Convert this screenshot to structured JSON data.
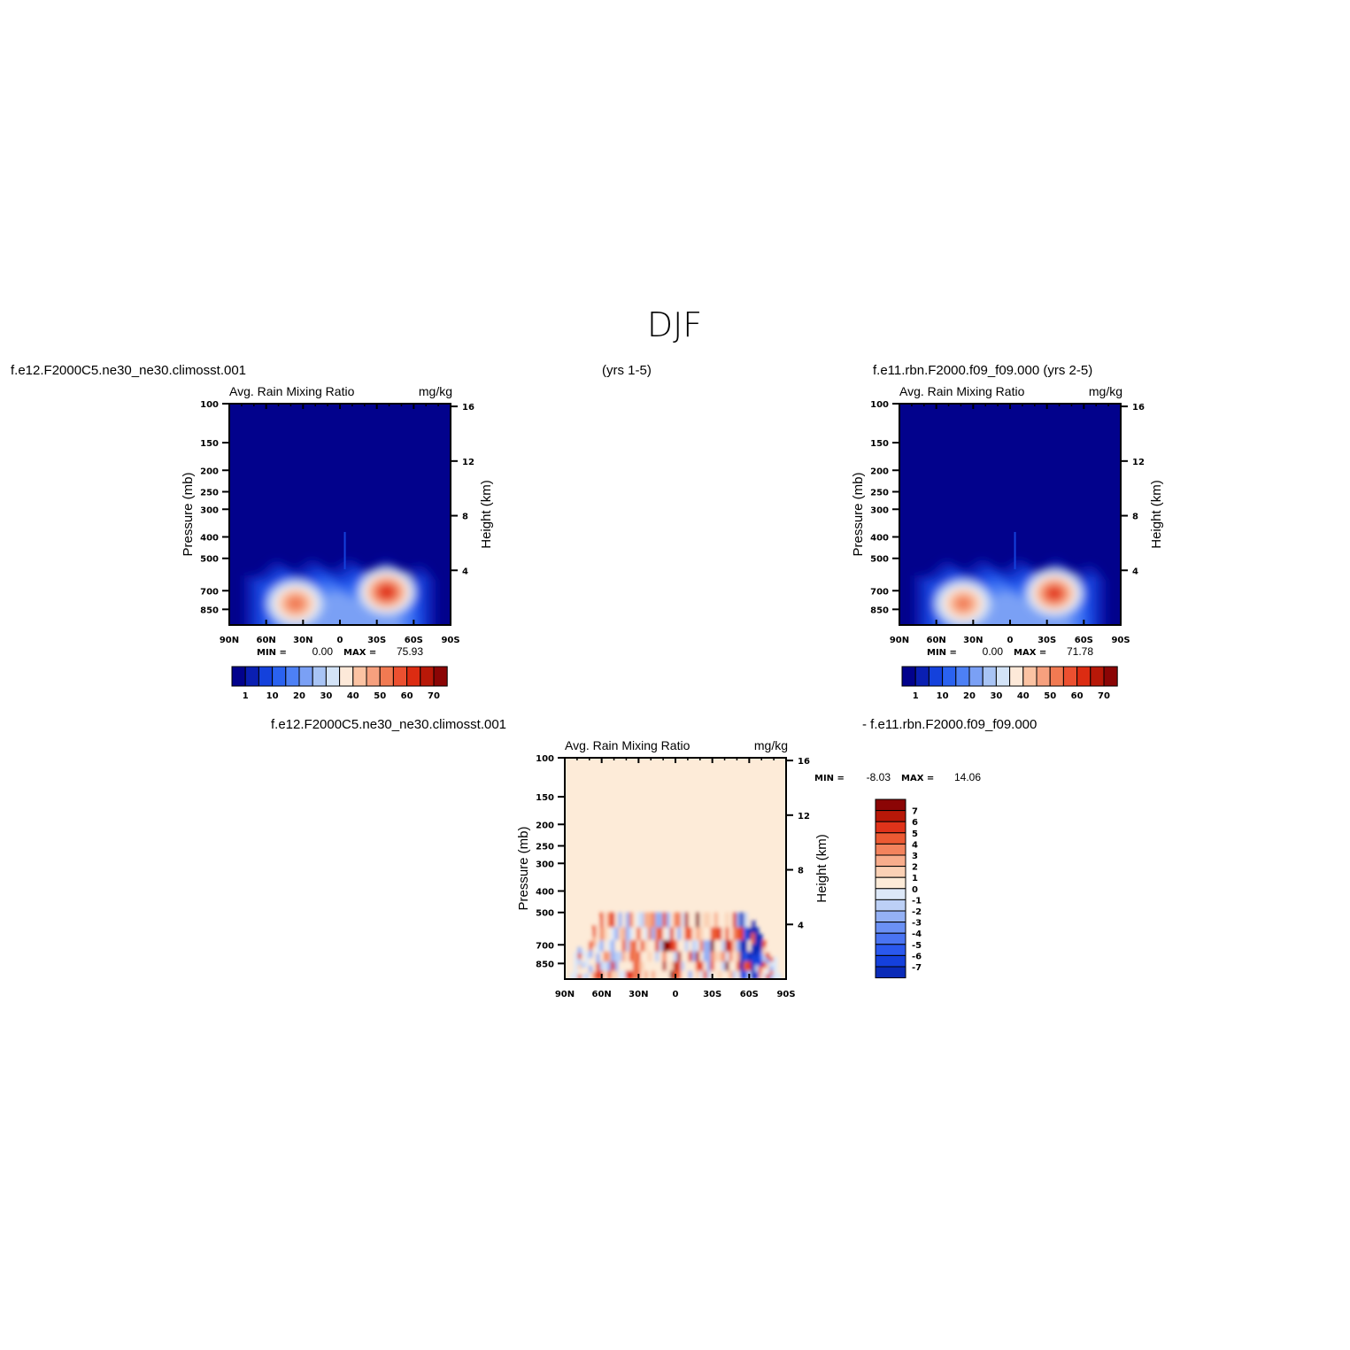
{
  "figure": {
    "season_title": "DJF",
    "case_label": "f.e12.F2000C5.ne30_ne30.climosst.001",
    "case_years": "(yrs 1-5)",
    "control_label": "f.e11.rbn.F2000.f09_f09.000 (yrs 2-5)",
    "diff_case_label": "f.e12.F2000C5.ne30_ne30.climosst.001",
    "diff_control_label": "- f.e11.rbn.F2000.f09_f09.000"
  },
  "colors": {
    "mean_scale": [
      "#02028c",
      "#0a1fb2",
      "#1441dc",
      "#2a62f0",
      "#4d80f5",
      "#7aa0f5",
      "#a8c4f5",
      "#d3e3f7",
      "#fde9d9",
      "#fbc3a3",
      "#f6a07e",
      "#f17a52",
      "#ec5030",
      "#dc2c12",
      "#b81808",
      "#8b0505"
    ],
    "diff_scale": [
      "#0e1f8c",
      "#0a2bb8",
      "#1440dc",
      "#2a58ee",
      "#4a74f2",
      "#6b91f4",
      "#94b1f5",
      "#bcd0f6",
      "#dde8f8",
      "#fdebd8",
      "#fbd1b5",
      "#f8ad8c",
      "#f3835d",
      "#ec5a33",
      "#e0331a",
      "#b81808",
      "#8b0505"
    ]
  },
  "chart_data": [
    {
      "type": "heatmap",
      "panel": "case",
      "title": "Avg. Rain Mixing Ratio",
      "units": "mg/kg",
      "xlabel": "",
      "ylabel": "Pressure (mb)",
      "y2label": "Height (km)",
      "x_ticks": [
        "90N",
        "60N",
        "30N",
        "0",
        "30S",
        "60S",
        "90S"
      ],
      "y_ticks": [
        "100",
        "150",
        "200",
        "250",
        "300",
        "400",
        "500",
        "700",
        "850"
      ],
      "y2_ticks": [
        "16",
        "12",
        "8",
        "4"
      ],
      "ylim": [
        100,
        1000
      ],
      "xlim": [
        "90N",
        "90S"
      ],
      "min_label": "MIN =",
      "min_value": "0.00",
      "max_label": "MAX =",
      "max_value": "75.93",
      "colorbar_labels": [
        "1",
        "10",
        "20",
        "30",
        "40",
        "50",
        "60",
        "70"
      ],
      "blobs": [
        {
          "lat": 36,
          "p": 800,
          "peak": 58
        },
        {
          "lat": -38,
          "p": 710,
          "peak": 75.93
        }
      ]
    },
    {
      "type": "heatmap",
      "panel": "control",
      "title": "Avg. Rain Mixing Ratio",
      "units": "mg/kg",
      "xlabel": "",
      "ylabel": "Pressure (mb)",
      "y2label": "Height (km)",
      "x_ticks": [
        "90N",
        "60N",
        "30N",
        "0",
        "30S",
        "60S",
        "90S"
      ],
      "y_ticks": [
        "100",
        "150",
        "200",
        "250",
        "300",
        "400",
        "500",
        "700",
        "850"
      ],
      "y2_ticks": [
        "16",
        "12",
        "8",
        "4"
      ],
      "ylim": [
        100,
        1000
      ],
      "xlim": [
        "90N",
        "90S"
      ],
      "min_label": "MIN =",
      "min_value": "0.00",
      "max_label": "MAX =",
      "max_value": "71.78",
      "colorbar_labels": [
        "1",
        "10",
        "20",
        "30",
        "40",
        "50",
        "60",
        "70"
      ],
      "blobs": [
        {
          "lat": 38,
          "p": 800,
          "peak": 55
        },
        {
          "lat": -36,
          "p": 720,
          "peak": 71.78
        }
      ]
    },
    {
      "type": "heatmap",
      "panel": "difference",
      "title": "Avg. Rain Mixing Ratio",
      "units": "mg/kg",
      "xlabel": "",
      "ylabel": "Pressure (mb)",
      "y2label": "Height (km)",
      "x_ticks": [
        "90N",
        "60N",
        "30N",
        "0",
        "30S",
        "60S",
        "90S"
      ],
      "y_ticks": [
        "100",
        "150",
        "200",
        "250",
        "300",
        "400",
        "500",
        "700",
        "850"
      ],
      "y2_ticks": [
        "16",
        "12",
        "8",
        "4"
      ],
      "ylim": [
        100,
        1000
      ],
      "xlim": [
        "90N",
        "90S"
      ],
      "min_label": "MIN =",
      "min_value": "-8.03",
      "max_label": "MAX =",
      "max_value": "14.06",
      "colorbar_labels": [
        "7",
        "6",
        "5",
        "4",
        "3",
        "2",
        "1",
        "0",
        "-1",
        "-2",
        "-3",
        "-4",
        "-5",
        "-6",
        "-7"
      ]
    }
  ]
}
